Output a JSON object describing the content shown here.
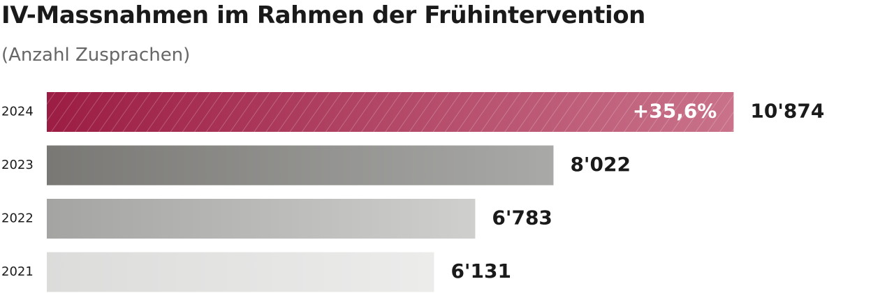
{
  "title": "IV-Massnahmen im Rahmen der Frühintervention",
  "subtitle": "(Anzahl Zusprachen)",
  "colors": {
    "highlight_start": "#9c1d44",
    "highlight_end": "#c9728a",
    "dark_start": "#797875",
    "dark_end": "#a9a9a7",
    "mid_start": "#a4a4a2",
    "mid_end": "#cfcfcd",
    "light_start": "#dcdcdb",
    "light_end": "#ececeb",
    "text": "#1a1a1a",
    "subtitle": "#666666"
  },
  "chart_data": {
    "type": "bar",
    "orientation": "horizontal",
    "title": "IV-Massnahmen im Rahmen der Frühintervention",
    "subtitle": "(Anzahl Zusprachen)",
    "categories": [
      "2024",
      "2023",
      "2022",
      "2021"
    ],
    "values": [
      10874,
      8022,
      6783,
      6131
    ],
    "value_labels": [
      "10'874",
      "8'022",
      "6'783",
      "6'131"
    ],
    "annotations": [
      {
        "category": "2024",
        "text": "+35,6%"
      }
    ],
    "xlim": [
      0,
      11500
    ],
    "grid": false,
    "legend": "none"
  }
}
